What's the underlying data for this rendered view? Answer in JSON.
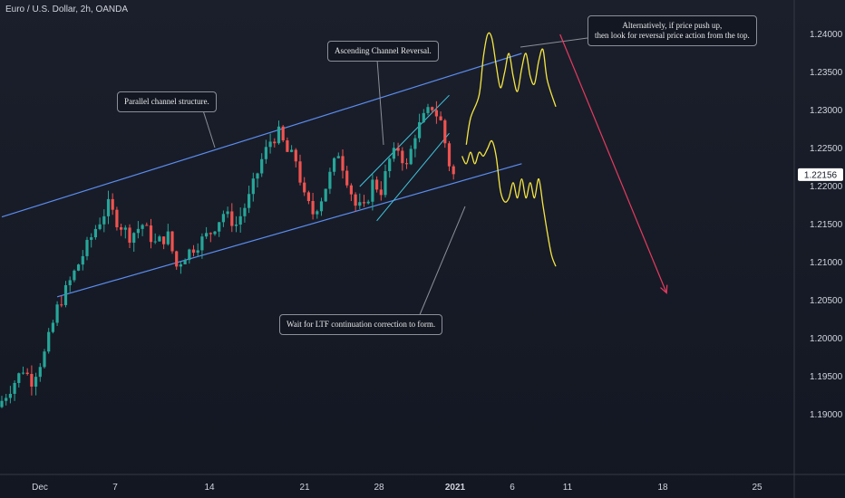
{
  "header": {
    "title": "Euro / U.S. Dollar, 2h, OANDA"
  },
  "annotations": {
    "parallel_channel": "Parallel channel structure.",
    "ascending_reversal": "Ascending Channel Reversal.",
    "alternative_line1": "Alternatively, if price push up,",
    "alternative_line2": "then look for reversal price action from the top.",
    "wait_ltf": "Wait for LTF continuation correction to form."
  },
  "colors": {
    "background": "#131722",
    "up_candle": "#26a69a",
    "down_candle": "#ef5350",
    "channel_line": "#5b8def",
    "inner_channel": "#3fc6e0",
    "projection": "#f5e642",
    "target_arrow": "#e63b5f",
    "axis_text": "#d1d4dc",
    "price_badge_bg": "#ffffff",
    "price_badge_text": "#131722"
  },
  "chart_data": {
    "type": "candlestick",
    "symbol": "Euro / U.S. Dollar",
    "interval": "2h",
    "exchange": "OANDA",
    "last_price": "1.22156",
    "y_ticks": [
      "1.24000",
      "1.23500",
      "1.23000",
      "1.22500",
      "1.22000",
      "1.21500",
      "1.21000",
      "1.20500",
      "1.20000",
      "1.19500",
      "1.19000"
    ],
    "x_ticks": [
      "Dec",
      "7",
      "14",
      "21",
      "28",
      "2021",
      "6",
      "11",
      "18",
      "25"
    ],
    "ylim": [
      1.187,
      1.2425
    ],
    "price_path": [
      [
        0,
        1.191
      ],
      [
        3,
        1.1935
      ],
      [
        6,
        1.196
      ],
      [
        8,
        1.1945
      ],
      [
        11,
        1.198
      ],
      [
        14,
        1.204
      ],
      [
        17,
        1.2075
      ],
      [
        20,
        1.211
      ],
      [
        23,
        1.2145
      ],
      [
        26,
        1.2175
      ],
      [
        28,
        1.2155
      ],
      [
        31,
        1.2135
      ],
      [
        34,
        1.215
      ],
      [
        37,
        1.2125
      ],
      [
        40,
        1.2135
      ],
      [
        42,
        1.2095
      ],
      [
        44,
        1.211
      ],
      [
        47,
        1.2125
      ],
      [
        50,
        1.214
      ],
      [
        53,
        1.2165
      ],
      [
        56,
        1.215
      ],
      [
        59,
        1.2185
      ],
      [
        62,
        1.2235
      ],
      [
        64,
        1.226
      ],
      [
        66,
        1.227
      ],
      [
        68,
        1.2245
      ],
      [
        70,
        1.2235
      ],
      [
        72,
        1.2185
      ],
      [
        74,
        1.2165
      ],
      [
        76,
        1.2185
      ],
      [
        78,
        1.2215
      ],
      [
        80,
        1.2245
      ],
      [
        82,
        1.221
      ],
      [
        84,
        1.2175
      ],
      [
        86,
        1.217
      ],
      [
        88,
        1.2205
      ],
      [
        90,
        1.2195
      ],
      [
        92,
        1.2235
      ],
      [
        94,
        1.225
      ],
      [
        96,
        1.2225
      ],
      [
        98,
        1.227
      ],
      [
        100,
        1.229
      ],
      [
        102,
        1.2305
      ],
      [
        104,
        1.2285
      ],
      [
        106,
        1.223
      ],
      [
        107,
        1.2215
      ]
    ],
    "channel_upper": [
      [
        0,
        1.216
      ],
      [
        122,
        1.2375
      ]
    ],
    "channel_lower": [
      [
        13,
        1.2055
      ],
      [
        122,
        1.223
      ]
    ],
    "inner_channel_upper": [
      [
        84,
        1.22
      ],
      [
        105,
        1.232
      ]
    ],
    "inner_channel_lower": [
      [
        88,
        1.2155
      ],
      [
        105,
        1.227
      ]
    ],
    "projection_up": [
      [
        109,
        1.2255
      ],
      [
        110,
        1.229
      ],
      [
        112,
        1.232
      ],
      [
        113,
        1.237
      ],
      [
        114,
        1.24
      ],
      [
        115,
        1.2395
      ],
      [
        116,
        1.236
      ],
      [
        117,
        1.233
      ],
      [
        118,
        1.235
      ],
      [
        119,
        1.2375
      ],
      [
        120,
        1.2345
      ],
      [
        121,
        1.2325
      ],
      [
        122,
        1.2355
      ],
      [
        123,
        1.2375
      ],
      [
        124,
        1.2345
      ],
      [
        125,
        1.2335
      ],
      [
        126,
        1.2365
      ],
      [
        127,
        1.238
      ],
      [
        128,
        1.234
      ],
      [
        130,
        1.2305
      ]
    ],
    "projection_down": [
      [
        108,
        1.224
      ],
      [
        109,
        1.223
      ],
      [
        110,
        1.2245
      ],
      [
        111,
        1.223
      ],
      [
        112,
        1.2245
      ],
      [
        113,
        1.224
      ],
      [
        114,
        1.225
      ],
      [
        115,
        1.226
      ],
      [
        116,
        1.224
      ],
      [
        117,
        1.2195
      ],
      [
        118,
        1.218
      ],
      [
        119,
        1.2185
      ],
      [
        120,
        1.2205
      ],
      [
        121,
        1.2185
      ],
      [
        122,
        1.221
      ],
      [
        123,
        1.2185
      ],
      [
        124,
        1.2205
      ],
      [
        125,
        1.2185
      ],
      [
        126,
        1.221
      ],
      [
        127,
        1.2175
      ],
      [
        128,
        1.214
      ],
      [
        129,
        1.211
      ],
      [
        130,
        1.2095
      ]
    ],
    "target_arrow": [
      [
        131,
        1.24
      ],
      [
        156,
        1.206
      ]
    ],
    "grid": false,
    "legend": "none"
  }
}
